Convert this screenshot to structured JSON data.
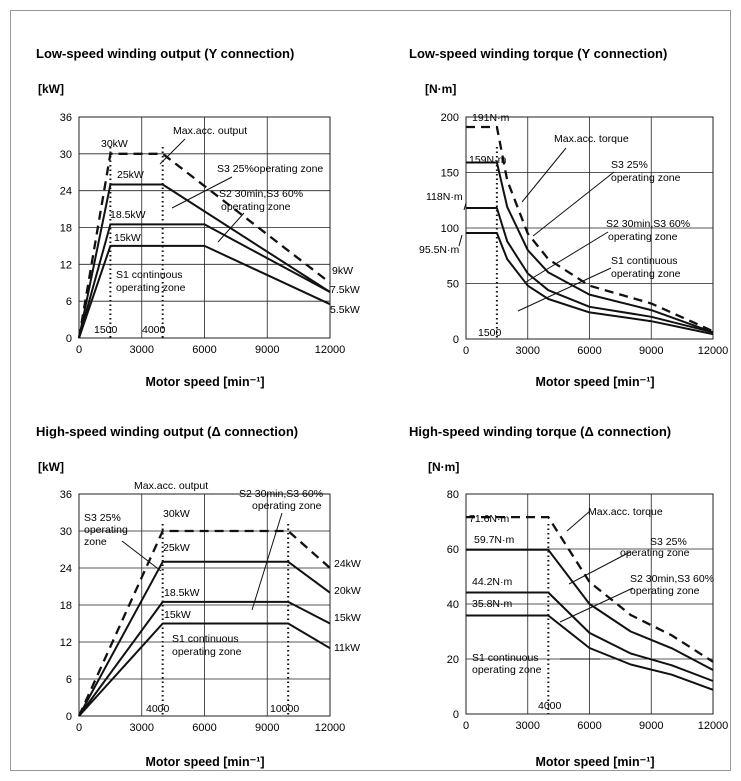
{
  "chart_data": [
    {
      "type": "line",
      "title": "Low-speed winding output (Y connection)",
      "ylabel": "[kW]",
      "xlabel": "Motor speed [min⁻¹]",
      "xlim": [
        0,
        12000
      ],
      "ylim": [
        0,
        36
      ],
      "xticks": [
        "0",
        "3000",
        "6000",
        "9000",
        "12000"
      ],
      "yticks": [
        "0",
        "6",
        "12",
        "18",
        "24",
        "30",
        "36"
      ],
      "grid": true,
      "series": [
        {
          "name": "Max.acc. output",
          "style": "dashed",
          "x": [
            0,
            1500,
            4000,
            12000
          ],
          "y": [
            0,
            30,
            30,
            9
          ]
        },
        {
          "name": "S3 25%operating zone",
          "style": "solid",
          "x": [
            0,
            1500,
            4000,
            12000
          ],
          "y": [
            0,
            25,
            25,
            7.5
          ]
        },
        {
          "name": "S2 30min,S3 60% operating zone",
          "style": "solid",
          "x": [
            0,
            1500,
            6000,
            12000
          ],
          "y": [
            0,
            18.5,
            18.5,
            7.5
          ]
        },
        {
          "name": "S1 continuous operating zone",
          "style": "solid",
          "x": [
            0,
            1500,
            6000,
            12000
          ],
          "y": [
            0,
            15,
            15,
            5.5
          ]
        }
      ],
      "vlines": [
        1500,
        4000
      ],
      "annotations": [
        "30kW",
        "25kW",
        "18.5kW",
        "15kW",
        "9kW",
        "7.5kW",
        "5.5kW",
        "1500",
        "4000"
      ]
    },
    {
      "type": "line",
      "title": "Low-speed winding torque (Y connection)",
      "ylabel": "[N·m]",
      "xlabel": "Motor speed [min⁻¹]",
      "xlim": [
        0,
        12000
      ],
      "ylim": [
        0,
        200
      ],
      "xticks": [
        "0",
        "3000",
        "6000",
        "9000",
        "12000"
      ],
      "yticks": [
        "0",
        "50",
        "100",
        "150",
        "200"
      ],
      "grid": true,
      "series": [
        {
          "name": "Max.acc. torque",
          "style": "dashed",
          "x": [
            0,
            1500,
            2000,
            3000,
            4000,
            6000,
            9000,
            12000
          ],
          "y": [
            191,
            191,
            143,
            95,
            72,
            48,
            32,
            7
          ]
        },
        {
          "name": "S3 25% operating zone",
          "style": "solid",
          "x": [
            0,
            1500,
            2000,
            3000,
            4000,
            6000,
            9000,
            12000
          ],
          "y": [
            159,
            159,
            119,
            80,
            60,
            40,
            26,
            6
          ]
        },
        {
          "name": "S2 30min,S3 60% operating zone",
          "style": "solid",
          "x": [
            0,
            1500,
            2000,
            3000,
            4000,
            6000,
            9000,
            12000
          ],
          "y": [
            118,
            118,
            88,
            59,
            44,
            29,
            20,
            6
          ]
        },
        {
          "name": "S1 continuous operating zone",
          "style": "solid",
          "x": [
            0,
            1500,
            2000,
            3000,
            4000,
            6000,
            9000,
            12000
          ],
          "y": [
            95.5,
            95.5,
            72,
            48,
            36,
            24,
            16,
            4.4
          ]
        }
      ],
      "vlines": [
        1500
      ],
      "annotations": [
        "191N·m",
        "159N·m",
        "118N·m",
        "95.5N·m",
        "1500"
      ]
    },
    {
      "type": "line",
      "title": "High-speed winding output (Δ connection)",
      "ylabel": "[kW]",
      "xlabel": "Motor speed [min⁻¹]",
      "xlim": [
        0,
        12000
      ],
      "ylim": [
        0,
        36
      ],
      "xticks": [
        "0",
        "3000",
        "6000",
        "9000",
        "12000"
      ],
      "yticks": [
        "0",
        "6",
        "12",
        "18",
        "24",
        "30",
        "36"
      ],
      "grid": true,
      "series": [
        {
          "name": "Max.acc. output",
          "style": "dashed",
          "x": [
            0,
            4000,
            10000,
            12000
          ],
          "y": [
            0,
            30,
            30,
            24
          ]
        },
        {
          "name": "S3 25% operating zone",
          "style": "solid",
          "x": [
            0,
            4000,
            10000,
            12000
          ],
          "y": [
            0,
            25,
            25,
            20
          ]
        },
        {
          "name": "S2 30min,S3 60% operating zone",
          "style": "solid",
          "x": [
            0,
            4000,
            10000,
            12000
          ],
          "y": [
            0,
            18.5,
            18.5,
            15
          ]
        },
        {
          "name": "S1 continuous operating zone",
          "style": "solid",
          "x": [
            0,
            4000,
            10000,
            12000
          ],
          "y": [
            0,
            15,
            15,
            11
          ]
        }
      ],
      "vlines": [
        4000,
        10000
      ],
      "annotations": [
        "30kW",
        "25kW",
        "18.5kW",
        "15kW",
        "24kW",
        "20kW",
        "15kW",
        "11kW",
        "4000",
        "10000"
      ]
    },
    {
      "type": "line",
      "title": "High-speed winding torque (Δ connection)",
      "ylabel": "[N·m]",
      "xlabel": "Motor speed [min⁻¹]",
      "xlim": [
        0,
        12000
      ],
      "ylim": [
        0,
        80
      ],
      "xticks": [
        "0",
        "3000",
        "6000",
        "9000",
        "12000"
      ],
      "yticks": [
        "0",
        "20",
        "40",
        "60",
        "80"
      ],
      "grid": true,
      "series": [
        {
          "name": "Max.acc. torque",
          "style": "dashed",
          "x": [
            0,
            4000,
            6000,
            8000,
            10000,
            12000
          ],
          "y": [
            71.6,
            71.6,
            48,
            36,
            28.6,
            19
          ]
        },
        {
          "name": "S3 25% operating zone",
          "style": "solid",
          "x": [
            0,
            4000,
            6000,
            8000,
            10000,
            12000
          ],
          "y": [
            59.7,
            59.7,
            40,
            30,
            23.9,
            16
          ]
        },
        {
          "name": "S2 30min,S3 60% operating zone",
          "style": "solid",
          "x": [
            0,
            4000,
            6000,
            8000,
            10000,
            12000
          ],
          "y": [
            44.2,
            44.2,
            29.5,
            22,
            17.7,
            12
          ]
        },
        {
          "name": "S1 continuous operating zone",
          "style": "solid",
          "x": [
            0,
            4000,
            6000,
            8000,
            10000,
            12000
          ],
          "y": [
            35.8,
            35.8,
            24,
            18,
            14.3,
            8.8
          ]
        }
      ],
      "vlines": [
        4000
      ],
      "annotations": [
        "71.6N·m",
        "59.7N·m",
        "44.2N·m",
        "35.8N·m",
        "4000"
      ]
    }
  ]
}
